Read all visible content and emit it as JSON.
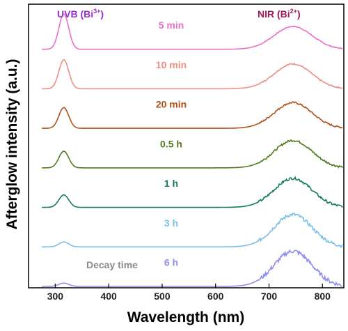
{
  "chart_data": {
    "type": "line",
    "xlabel": "Wavelength (nm)",
    "ylabel": "Afterglow intensity (a.u.)",
    "xlim": [
      250,
      840
    ],
    "xticks": [
      300,
      400,
      500,
      600,
      700,
      800
    ],
    "yticks_shown": false,
    "annotations": {
      "uvb": {
        "text": "UVB (Bi",
        "sup": "3+",
        "close": ")",
        "color": "#9b2fc9"
      },
      "nir": {
        "text": "NIR (Bi",
        "sup": "2+",
        "close": ")",
        "color": "#a0185a"
      },
      "decay": {
        "text": "Decay time",
        "color": "#8a8a8a"
      }
    },
    "series": [
      {
        "name": "5 min",
        "color": "#ea6fc6",
        "uvb_peak": 0.85,
        "nir_peak": 0.55,
        "noise": 0.01
      },
      {
        "name": "10 min",
        "color": "#ee8f86",
        "uvb_peak": 0.7,
        "nir_peak": 0.6,
        "noise": 0.015
      },
      {
        "name": "20 min",
        "color": "#b0521a",
        "uvb_peak": 0.5,
        "nir_peak": 0.62,
        "noise": 0.02
      },
      {
        "name": "0.5 h",
        "color": "#4f7a1e",
        "uvb_peak": 0.4,
        "nir_peak": 0.66,
        "noise": 0.025
      },
      {
        "name": "1 h",
        "color": "#137a60",
        "uvb_peak": 0.3,
        "nir_peak": 0.7,
        "noise": 0.03
      },
      {
        "name": "3 h",
        "color": "#79bfea",
        "uvb_peak": 0.12,
        "nir_peak": 0.78,
        "noise": 0.04
      },
      {
        "name": "6 h",
        "color": "#8f8fe8",
        "uvb_peak": 0.08,
        "nir_peak": 0.85,
        "noise": 0.05
      }
    ]
  }
}
